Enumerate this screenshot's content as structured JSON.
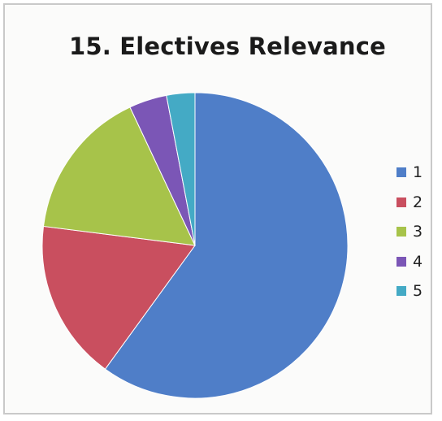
{
  "chart_data": {
    "type": "pie",
    "title": "15.  Electives Relevance",
    "categories": [
      "1",
      "2",
      "3",
      "4",
      "5"
    ],
    "values": [
      60,
      17,
      16,
      4,
      3
    ],
    "colors": [
      "#4f7ec8",
      "#c94f5f",
      "#a7c34a",
      "#7b56b6",
      "#44aac5"
    ],
    "legend_position": "right",
    "start_angle_deg": 0,
    "direction": "clockwise"
  }
}
